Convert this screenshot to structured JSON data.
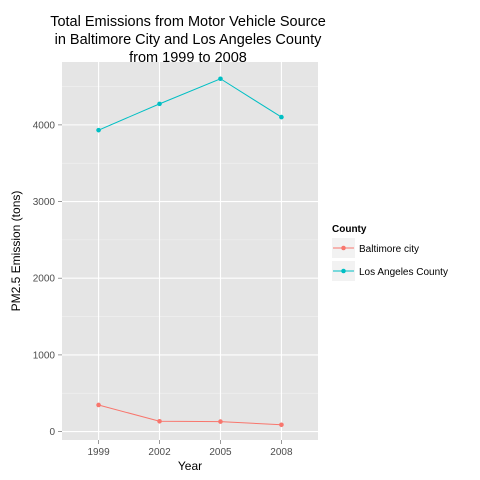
{
  "chart_data": {
    "type": "line",
    "title_lines": [
      "Total Emissions from Motor Vehicle Source",
      "in Baltimore City and Los Angeles County",
      "from 1999 to 2008"
    ],
    "xlabel": "Year",
    "ylabel": "PM2.5 Emission (tons)",
    "x": [
      1999,
      2002,
      2005,
      2008
    ],
    "x_tick_labels": [
      "1999",
      "2002",
      "2005",
      "2008"
    ],
    "y_ticks": [
      0,
      1000,
      2000,
      3000,
      4000
    ],
    "y_tick_labels": [
      "0",
      "1000",
      "2000",
      "3000",
      "4000"
    ],
    "ylim": [
      -110,
      4820
    ],
    "grid": true,
    "legend": {
      "title": "County",
      "position": "right"
    },
    "series": [
      {
        "name": "Baltimore city",
        "color": "#f8766d",
        "values": [
          346.8,
          134.3,
          130.4,
          88.3
        ]
      },
      {
        "name": "Los Angeles County",
        "color": "#00bfc4",
        "values": [
          3931.1,
          4274.0,
          4601.4,
          4101.3
        ]
      }
    ]
  }
}
